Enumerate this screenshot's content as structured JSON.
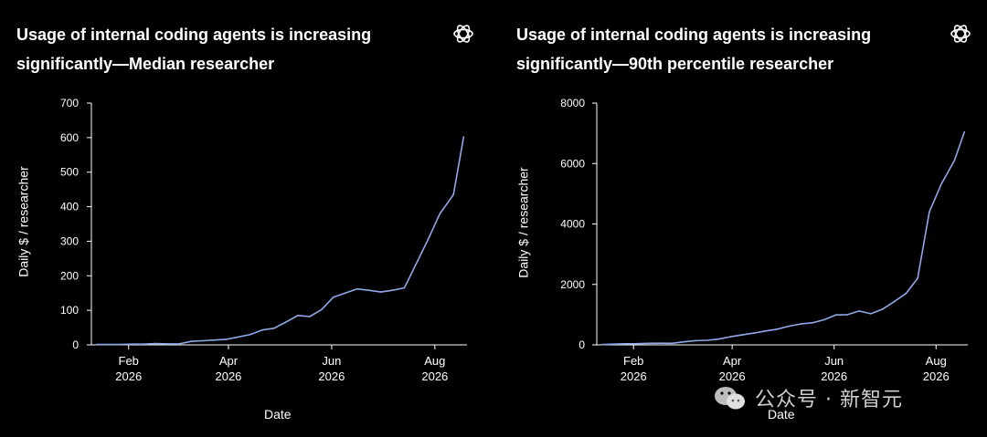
{
  "colors": {
    "background": "#000000",
    "line": "#8fa8e8",
    "axis": "#ffffff"
  },
  "charts": {
    "median": {
      "title_line1": "Usage of internal coding agents is increasing",
      "title_line2": "significantly—Median researcher",
      "logo_icon": "openai-logo-icon"
    },
    "p90": {
      "title_line1": "Usage of internal coding agents is increasing",
      "title_line2": "significantly—90th percentile researcher",
      "logo_icon": "openai-logo-icon"
    }
  },
  "watermark": {
    "text": "公众号 · 新智元",
    "icon": "wechat-icon"
  },
  "chart_data": [
    {
      "type": "line",
      "title": "Usage of internal coding agents is increasing significantly—Median researcher",
      "xlabel": "Date",
      "ylabel": "Daily $ / researcher",
      "ylim": [
        0,
        700
      ],
      "xlim": [
        "2026-01-10",
        "2026-08-20"
      ],
      "yticks": [
        0,
        100,
        200,
        300,
        400,
        500,
        600,
        700
      ],
      "xticks": [
        {
          "date": "2026-02-01",
          "label1": "Feb",
          "label2": "2026"
        },
        {
          "date": "2026-04-01",
          "label1": "Apr",
          "label2": "2026"
        },
        {
          "date": "2026-06-01",
          "label1": "Jun",
          "label2": "2026"
        },
        {
          "date": "2026-08-01",
          "label1": "Aug",
          "label2": "2026"
        }
      ],
      "grid": false,
      "series": [
        {
          "x": [
            "2026-01-13",
            "2026-01-20",
            "2026-01-27",
            "2026-02-03",
            "2026-02-10",
            "2026-02-17",
            "2026-02-24",
            "2026-03-03",
            "2026-03-10",
            "2026-03-17",
            "2026-03-24",
            "2026-03-31",
            "2026-04-07",
            "2026-04-14",
            "2026-04-21",
            "2026-04-28",
            "2026-05-05",
            "2026-05-12",
            "2026-05-19",
            "2026-05-26",
            "2026-06-02",
            "2026-06-09",
            "2026-06-16",
            "2026-06-23",
            "2026-06-30",
            "2026-07-07",
            "2026-07-14",
            "2026-07-21",
            "2026-07-28",
            "2026-08-04",
            "2026-08-12"
          ],
          "y": [
            1,
            1,
            1,
            2,
            2,
            4,
            3,
            3,
            10,
            12,
            14,
            16,
            23,
            30,
            43,
            48,
            66,
            85,
            82,
            102,
            138,
            150,
            162,
            158,
            153,
            158,
            165,
            235,
            305,
            380,
            435
          ]
        }
      ],
      "last_point": {
        "x": "2026-08-18",
        "y": 602
      }
    },
    {
      "type": "line",
      "title": "Usage of internal coding agents is increasing significantly—90th percentile researcher",
      "xlabel": "Date",
      "ylabel": "Daily $ / researcher",
      "ylim": [
        0,
        8000
      ],
      "xlim": [
        "2026-01-10",
        "2026-08-20"
      ],
      "yticks": [
        0,
        2000,
        4000,
        6000,
        8000
      ],
      "xticks": [
        {
          "date": "2026-02-01",
          "label1": "Feb",
          "label2": "2026"
        },
        {
          "date": "2026-04-01",
          "label1": "Apr",
          "label2": "2026"
        },
        {
          "date": "2026-06-01",
          "label1": "Jun",
          "label2": "2026"
        },
        {
          "date": "2026-08-01",
          "label1": "Aug",
          "label2": "2026"
        }
      ],
      "grid": false,
      "series": [
        {
          "x": [
            "2026-01-13",
            "2026-01-20",
            "2026-01-27",
            "2026-02-03",
            "2026-02-10",
            "2026-02-17",
            "2026-02-24",
            "2026-03-03",
            "2026-03-10",
            "2026-03-17",
            "2026-03-24",
            "2026-03-31",
            "2026-04-07",
            "2026-04-14",
            "2026-04-21",
            "2026-04-28",
            "2026-05-05",
            "2026-05-12",
            "2026-05-19",
            "2026-05-26",
            "2026-06-02",
            "2026-06-09",
            "2026-06-16",
            "2026-06-23",
            "2026-06-30",
            "2026-07-07",
            "2026-07-14",
            "2026-07-21",
            "2026-07-28",
            "2026-08-04",
            "2026-08-12"
          ],
          "y": [
            10,
            25,
            35,
            40,
            50,
            55,
            50,
            100,
            140,
            150,
            190,
            270,
            330,
            390,
            460,
            520,
            620,
            690,
            730,
            830,
            990,
            1000,
            1120,
            1030,
            1180,
            1430,
            1700,
            2200,
            4400,
            5300,
            6100
          ]
        }
      ],
      "last_point": {
        "x": "2026-08-18",
        "y": 7050
      }
    }
  ]
}
